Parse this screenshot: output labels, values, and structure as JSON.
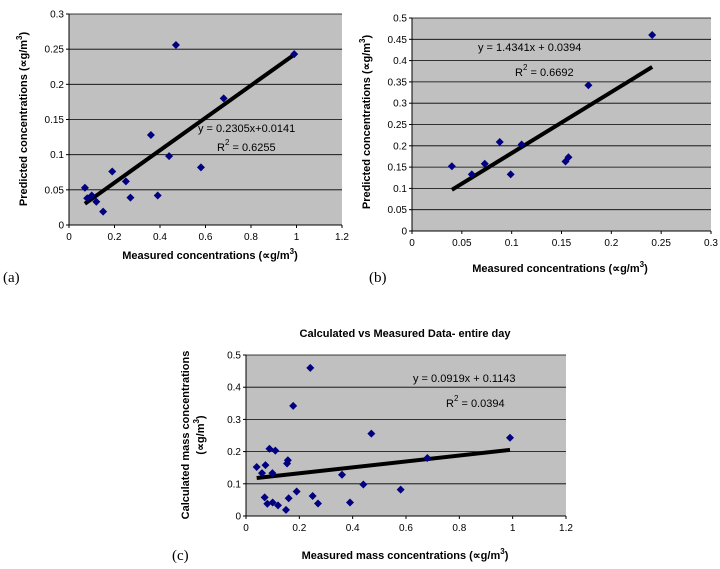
{
  "chart_data": [
    {
      "id": "a",
      "type": "scatter",
      "panel_label": "(a)",
      "xlabel": "Measured concentrations (∝g/m",
      "ylabel": "Predicted concentrations (∝g/m",
      "unit_sup": "3",
      "unit_close": ")",
      "xlim": [
        0,
        1.2
      ],
      "ylim": [
        0,
        0.3
      ],
      "xticks": [
        0,
        0.2,
        0.4,
        0.6,
        0.8,
        1,
        1.2
      ],
      "xtick_labels": [
        "0",
        "0.2",
        "0.4",
        "0.6",
        "0.8",
        "1",
        "1.2"
      ],
      "yticks": [
        0,
        0.05,
        0.1,
        0.15,
        0.2,
        0.25,
        0.3
      ],
      "ytick_labels": [
        "0",
        "0.05",
        "0.1",
        "0.15",
        "0.2",
        "0.25",
        "0.3"
      ],
      "grid": true,
      "plot_background": "#c0c0c0",
      "marker_color": "#000080",
      "trendline_color": "#000000",
      "points": [
        {
          "x": 0.07,
          "y": 0.053
        },
        {
          "x": 0.08,
          "y": 0.038
        },
        {
          "x": 0.1,
          "y": 0.042
        },
        {
          "x": 0.12,
          "y": 0.033
        },
        {
          "x": 0.15,
          "y": 0.019
        },
        {
          "x": 0.19,
          "y": 0.076
        },
        {
          "x": 0.25,
          "y": 0.062
        },
        {
          "x": 0.27,
          "y": 0.039
        },
        {
          "x": 0.36,
          "y": 0.128
        },
        {
          "x": 0.39,
          "y": 0.042
        },
        {
          "x": 0.44,
          "y": 0.098
        },
        {
          "x": 0.47,
          "y": 0.256
        },
        {
          "x": 0.58,
          "y": 0.082
        },
        {
          "x": 0.68,
          "y": 0.18
        },
        {
          "x": 0.99,
          "y": 0.243
        }
      ],
      "trendline": {
        "slope": 0.2305,
        "intercept": 0.0141,
        "x_range": [
          0.07,
          0.99
        ]
      },
      "equation": "y = 0.2305x+0.0141",
      "r2_prefix": "R",
      "r2_sup": "2",
      "r2_value": " = 0.6255"
    },
    {
      "id": "b",
      "type": "scatter",
      "panel_label": "(b)",
      "xlabel": "Measured concentrations (∝g/m",
      "ylabel": "Predicted concentrations (∝g/m",
      "unit_sup": "3",
      "unit_close": ")",
      "xlim": [
        0,
        0.3
      ],
      "ylim": [
        0,
        0.5
      ],
      "xticks": [
        0,
        0.05,
        0.1,
        0.15,
        0.2,
        0.25,
        0.3
      ],
      "xtick_labels": [
        "0",
        "0.05",
        "0.1",
        "0.15",
        "0.2",
        "0.25",
        "0.3"
      ],
      "yticks": [
        0,
        0.05,
        0.1,
        0.15,
        0.2,
        0.25,
        0.3,
        0.35,
        0.4,
        0.45,
        0.5
      ],
      "ytick_labels": [
        "0",
        "0.05",
        "0.1",
        "0.15",
        "0.2",
        "0.25",
        "0.3",
        "0.35",
        "0.4",
        "0.45",
        "0.5"
      ],
      "grid": true,
      "plot_background": "#c0c0c0",
      "marker_color": "#000080",
      "trendline_color": "#000000",
      "points": [
        {
          "x": 0.04,
          "y": 0.152
        },
        {
          "x": 0.06,
          "y": 0.133
        },
        {
          "x": 0.073,
          "y": 0.158
        },
        {
          "x": 0.088,
          "y": 0.209
        },
        {
          "x": 0.099,
          "y": 0.133
        },
        {
          "x": 0.11,
          "y": 0.203
        },
        {
          "x": 0.154,
          "y": 0.163
        },
        {
          "x": 0.157,
          "y": 0.173
        },
        {
          "x": 0.177,
          "y": 0.342
        },
        {
          "x": 0.241,
          "y": 0.46
        }
      ],
      "trendline": {
        "slope": 1.4341,
        "intercept": 0.0394,
        "x_range": [
          0.04,
          0.241
        ]
      },
      "equation": "y = 1.4341x + 0.0394",
      "r2_prefix": "R",
      "r2_sup": "2",
      "r2_value": " = 0.6692"
    },
    {
      "id": "c",
      "type": "scatter",
      "panel_label": "(c)",
      "title": "Calculated vs Measured Data- entire day",
      "xlabel": "Measured mass concentrations (∝g/m",
      "ylabel": "Calculated mass concentrations",
      "ylabel2": "(∝g/m",
      "unit_sup": "3",
      "unit_close": ")",
      "xlim": [
        0,
        1.2
      ],
      "ylim": [
        0,
        0.5
      ],
      "xticks": [
        0,
        0.2,
        0.4,
        0.6,
        0.8,
        1,
        1.2
      ],
      "xtick_labels": [
        "0",
        "0.2",
        "0.4",
        "0.6",
        "0.8",
        "1",
        "1.2"
      ],
      "yticks": [
        0,
        0.1,
        0.2,
        0.3,
        0.4,
        0.5
      ],
      "ytick_labels": [
        "0",
        "0.1",
        "0.2",
        "0.3",
        "0.4",
        "0.5"
      ],
      "grid": true,
      "plot_background": "#c0c0c0",
      "marker_color": "#000080",
      "trendline_color": "#000000",
      "points": [
        {
          "x": 0.04,
          "y": 0.152
        },
        {
          "x": 0.06,
          "y": 0.133
        },
        {
          "x": 0.07,
          "y": 0.058
        },
        {
          "x": 0.073,
          "y": 0.158
        },
        {
          "x": 0.08,
          "y": 0.038
        },
        {
          "x": 0.088,
          "y": 0.209
        },
        {
          "x": 0.099,
          "y": 0.133
        },
        {
          "x": 0.1,
          "y": 0.042
        },
        {
          "x": 0.11,
          "y": 0.203
        },
        {
          "x": 0.12,
          "y": 0.033
        },
        {
          "x": 0.15,
          "y": 0.019
        },
        {
          "x": 0.154,
          "y": 0.163
        },
        {
          "x": 0.157,
          "y": 0.173
        },
        {
          "x": 0.16,
          "y": 0.055
        },
        {
          "x": 0.177,
          "y": 0.342
        },
        {
          "x": 0.19,
          "y": 0.076
        },
        {
          "x": 0.241,
          "y": 0.46
        },
        {
          "x": 0.25,
          "y": 0.062
        },
        {
          "x": 0.27,
          "y": 0.039
        },
        {
          "x": 0.36,
          "y": 0.128
        },
        {
          "x": 0.39,
          "y": 0.042
        },
        {
          "x": 0.44,
          "y": 0.098
        },
        {
          "x": 0.47,
          "y": 0.256
        },
        {
          "x": 0.58,
          "y": 0.082
        },
        {
          "x": 0.68,
          "y": 0.18
        },
        {
          "x": 0.99,
          "y": 0.243
        }
      ],
      "trendline": {
        "slope": 0.0919,
        "intercept": 0.1143,
        "x_range": [
          0.04,
          0.99
        ]
      },
      "equation": "y = 0.0919x + 0.1143",
      "r2_prefix": "R",
      "r2_sup": "2",
      "r2_value": " = 0.0394"
    }
  ]
}
